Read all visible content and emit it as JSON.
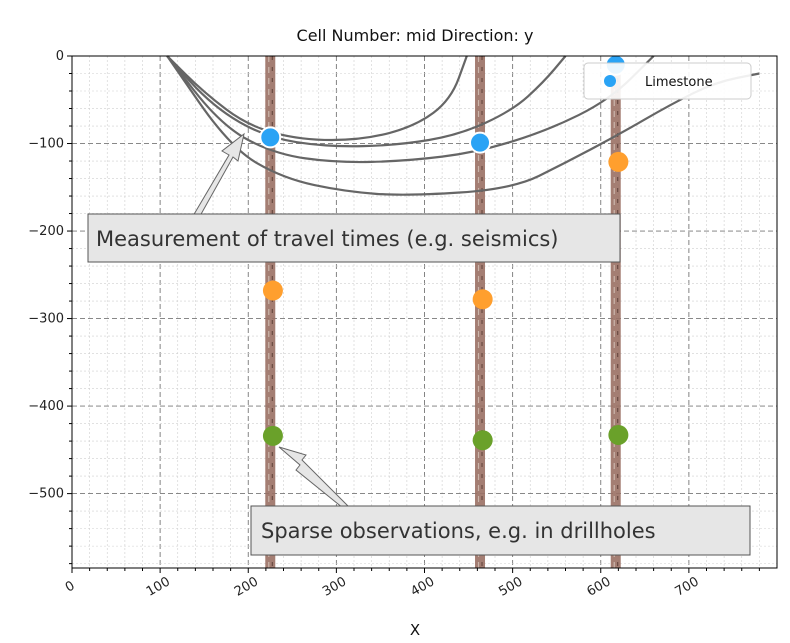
{
  "chart_data": {
    "type": "scatter",
    "title": "Cell Number: mid Direction: y",
    "xlabel": "X",
    "ylabel": "",
    "xlim": [
      0,
      800
    ],
    "ylim": [
      -585,
      0
    ],
    "xticks": [
      0,
      100,
      200,
      300,
      400,
      500,
      600,
      700
    ],
    "xtick_labels": [
      "0",
      "100",
      "200",
      "300",
      "400",
      "500",
      "600",
      "700"
    ],
    "yticks": [
      0,
      -100,
      -200,
      -300,
      -400,
      -500
    ],
    "ytick_labels": [
      "0",
      "−100",
      "−200",
      "−300",
      "−400",
      "−500"
    ],
    "grid": true,
    "legend": {
      "position": "top-right",
      "entries": [
        {
          "name": "Limestone",
          "color": "#2aa3f5"
        }
      ]
    },
    "drillholes": [
      {
        "x": 225
      },
      {
        "x": 463
      },
      {
        "x": 617
      }
    ],
    "series": [
      {
        "name": "Limestone",
        "color": "#2aa3f5",
        "points": [
          [
            225,
            -93
          ],
          [
            463,
            -99
          ],
          [
            617,
            -10
          ]
        ]
      },
      {
        "color": "#ff9f2e",
        "points": [
          [
            228,
            -268
          ],
          [
            466,
            -278
          ],
          [
            620,
            -121
          ]
        ]
      },
      {
        "color": "#6aa12a",
        "points": [
          [
            228,
            -434
          ],
          [
            466,
            -439
          ],
          [
            620,
            -433
          ]
        ]
      }
    ],
    "seismic_curves": [
      [
        [
          108,
          0
        ],
        [
          150,
          -42
        ],
        [
          200,
          -80
        ],
        [
          260,
          -96
        ],
        [
          330,
          -96
        ],
        [
          390,
          -80
        ],
        [
          430,
          -50
        ],
        [
          448,
          0
        ]
      ],
      [
        [
          108,
          0
        ],
        [
          160,
          -58
        ],
        [
          220,
          -93
        ],
        [
          290,
          -104
        ],
        [
          370,
          -102
        ],
        [
          440,
          -90
        ],
        [
          500,
          -62
        ],
        [
          535,
          -30
        ],
        [
          560,
          0
        ]
      ],
      [
        [
          108,
          0
        ],
        [
          170,
          -80
        ],
        [
          230,
          -112
        ],
        [
          300,
          -122
        ],
        [
          380,
          -120
        ],
        [
          460,
          -110
        ],
        [
          540,
          -85
        ],
        [
          610,
          -50
        ],
        [
          660,
          0
        ]
      ],
      [
        [
          108,
          0
        ],
        [
          180,
          -105
        ],
        [
          240,
          -140
        ],
        [
          310,
          -155
        ],
        [
          380,
          -160
        ],
        [
          500,
          -152
        ],
        [
          560,
          -122
        ],
        [
          620,
          -90
        ],
        [
          680,
          -55
        ],
        [
          730,
          -30
        ],
        [
          780,
          -20
        ]
      ]
    ],
    "annotations": [
      {
        "text": "Measurement of travel times (e.g. seismics)",
        "points_to": [
          195,
          -85
        ]
      },
      {
        "text": "Sparse observations, e.g. in drillholes",
        "points_to": [
          237,
          -443
        ]
      }
    ]
  }
}
